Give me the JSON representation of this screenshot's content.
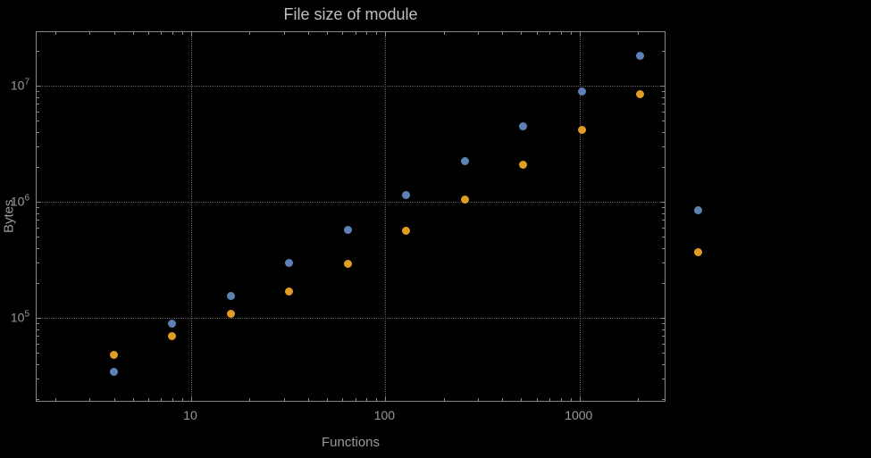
{
  "chart_data": {
    "type": "scatter",
    "title": "File size of module",
    "xlabel": "Functions",
    "ylabel": "Bytes",
    "x_scale": "log",
    "y_scale": "log",
    "xlim": [
      1.6,
      2800
    ],
    "ylim": [
      18600,
      29000000
    ],
    "grid": true,
    "legend": "none",
    "x_major_ticks": [
      10,
      100,
      1000
    ],
    "x_tick_labels": [
      "10",
      "100",
      "1000"
    ],
    "y_major_ticks": [
      100000,
      1000000,
      10000000
    ],
    "y_tick_exponents": [
      5,
      6,
      7
    ],
    "series": [
      {
        "name": "blue-series",
        "color": "#5e81b5",
        "x": [
          4,
          8,
          16,
          32,
          64,
          128,
          256,
          512,
          1024,
          2048,
          4096
        ],
        "y": [
          34000,
          90000,
          155000,
          300000,
          570000,
          1150000,
          2250000,
          4500000,
          9000000,
          18000000,
          850000
        ]
      },
      {
        "name": "orange-series",
        "color": "#e19c24",
        "x": [
          4,
          8,
          16,
          32,
          64,
          128,
          256,
          512,
          1024,
          2048,
          4096
        ],
        "y": [
          48000,
          70000,
          108000,
          170000,
          290000,
          560000,
          1050000,
          2100000,
          4200000,
          8500000,
          370000
        ]
      }
    ],
    "colors": {
      "background": "#000000",
      "frame": "#878787",
      "grid": "#5e5e5e",
      "text": "#999999",
      "title": "#bfbfbf"
    }
  }
}
